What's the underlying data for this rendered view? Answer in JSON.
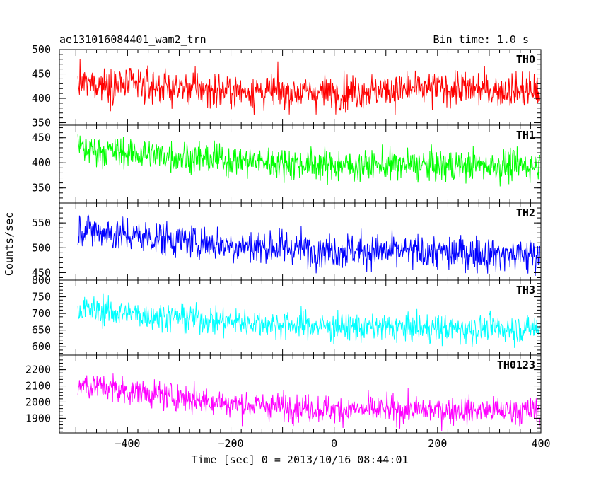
{
  "header": {
    "title": "ae131016084401_wam2_trn",
    "bin_label": "Bin time: 1.0 s"
  },
  "chart_data": {
    "type": "line",
    "xlabel": "Time [sec] 0 = 2013/10/16 08:44:01",
    "ylabel": "Counts/sec",
    "xlim": [
      -510,
      400
    ],
    "x_ticks": [
      -400,
      -200,
      0,
      200,
      400
    ],
    "x_tick_labels": [
      "−400",
      "−200",
      "0",
      "200",
      "400"
    ],
    "grid": false,
    "panels": [
      {
        "name": "TH0",
        "color": "#ff0000",
        "ylim": [
          345,
          500
        ],
        "y_ticks": [
          350,
          400,
          450,
          500
        ],
        "approx_trend": {
          "x": [
            -510,
            -400,
            -200,
            0,
            200,
            400
          ],
          "y": [
            430,
            428,
            415,
            412,
            420,
            415
          ]
        },
        "approx_spread": 25
      },
      {
        "name": "TH1",
        "color": "#00ff00",
        "ylim": [
          320,
          475
        ],
        "y_ticks": [
          350,
          400,
          450
        ],
        "approx_trend": {
          "x": [
            -510,
            -400,
            -200,
            0,
            200,
            400
          ],
          "y": [
            430,
            420,
            405,
            395,
            395,
            395
          ]
        },
        "approx_spread": 22
      },
      {
        "name": "TH2",
        "color": "#0000ff",
        "ylim": [
          435,
          590
        ],
        "y_ticks": [
          450,
          500,
          550
        ],
        "approx_trend": {
          "x": [
            -510,
            -400,
            -200,
            0,
            200,
            400
          ],
          "y": [
            540,
            525,
            505,
            495,
            490,
            485
          ]
        },
        "approx_spread": 25
      },
      {
        "name": "TH3",
        "color": "#00ffff",
        "ylim": [
          575,
          800
        ],
        "y_ticks": [
          600,
          650,
          700,
          750,
          800
        ],
        "approx_trend": {
          "x": [
            -510,
            -400,
            -200,
            0,
            200,
            400
          ],
          "y": [
            715,
            700,
            675,
            660,
            655,
            655
          ]
        },
        "approx_spread": 30
      },
      {
        "name": "TH0123",
        "color": "#ff00ff",
        "ylim": [
          1810,
          2290
        ],
        "y_ticks": [
          1900,
          2000,
          2100,
          2200
        ],
        "approx_trend": {
          "x": [
            -510,
            -400,
            -200,
            0,
            200,
            400
          ],
          "y": [
            2120,
            2070,
            1990,
            1955,
            1950,
            1945
          ]
        },
        "approx_spread": 60
      }
    ]
  }
}
